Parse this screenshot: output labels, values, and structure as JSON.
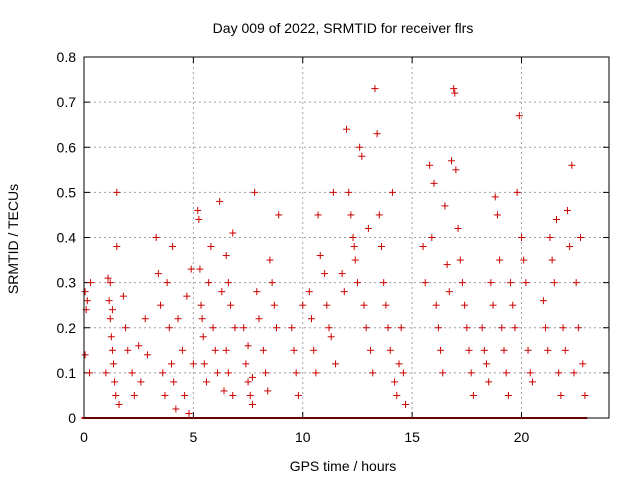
{
  "chart_data": {
    "type": "scatter",
    "title": "Day 009 of 2022, SRMTID for receiver flrs",
    "xlabel": "GPS time / hours",
    "ylabel": "SRMTID / TECUs",
    "xlim": [
      0,
      24
    ],
    "ylim": [
      0,
      0.8
    ],
    "xticks": [
      0,
      5,
      10,
      15,
      20
    ],
    "xtick_labels": [
      "0",
      "5",
      "10",
      "15",
      "20"
    ],
    "yticks": [
      0,
      0.1,
      0.2,
      0.3,
      0.4,
      0.5,
      0.6,
      0.7,
      0.8
    ],
    "ytick_labels": [
      "0",
      "0.1",
      "0.2",
      "0.3",
      "0.4",
      "0.5",
      "0.6",
      "0.7",
      "0.8"
    ],
    "grid": true,
    "marker": "+",
    "color": "#cc0000",
    "series": [
      {
        "name": "flrs",
        "points": [
          [
            0.05,
            0.28
          ],
          [
            0.05,
            0.14
          ],
          [
            0.1,
            0.24
          ],
          [
            0.15,
            0.26
          ],
          [
            0.3,
            0.3
          ],
          [
            0.25,
            0.1
          ],
          [
            1.1,
            0.31
          ],
          [
            1.15,
            0.26
          ],
          [
            1.2,
            0.22
          ],
          [
            1.25,
            0.18
          ],
          [
            1.3,
            0.15
          ],
          [
            1.35,
            0.12
          ],
          [
            1.4,
            0.08
          ],
          [
            1.45,
            0.05
          ],
          [
            1.5,
            0.5
          ],
          [
            1.5,
            0.38
          ],
          [
            1.2,
            0.3
          ],
          [
            1.3,
            0.24
          ],
          [
            1.6,
            0.03
          ],
          [
            1.0,
            0.1
          ],
          [
            1.8,
            0.27
          ],
          [
            1.9,
            0.2
          ],
          [
            2.0,
            0.15
          ],
          [
            2.2,
            0.1
          ],
          [
            2.3,
            0.05
          ],
          [
            2.5,
            0.16
          ],
          [
            2.6,
            0.08
          ],
          [
            2.8,
            0.22
          ],
          [
            2.9,
            0.14
          ],
          [
            3.3,
            0.4
          ],
          [
            3.4,
            0.32
          ],
          [
            3.5,
            0.25
          ],
          [
            3.6,
            0.1
          ],
          [
            3.7,
            0.05
          ],
          [
            3.8,
            0.3
          ],
          [
            3.9,
            0.2
          ],
          [
            4.0,
            0.12
          ],
          [
            4.05,
            0.38
          ],
          [
            4.1,
            0.08
          ],
          [
            4.2,
            0.02
          ],
          [
            4.3,
            0.22
          ],
          [
            4.5,
            0.15
          ],
          [
            4.6,
            0.05
          ],
          [
            4.7,
            0.27
          ],
          [
            4.8,
            0.01
          ],
          [
            4.9,
            0.33
          ],
          [
            5.0,
            0.12
          ],
          [
            5.2,
            0.46
          ],
          [
            5.25,
            0.44
          ],
          [
            5.3,
            0.33
          ],
          [
            5.35,
            0.25
          ],
          [
            5.4,
            0.22
          ],
          [
            5.45,
            0.18
          ],
          [
            5.5,
            0.12
          ],
          [
            5.6,
            0.08
          ],
          [
            5.7,
            0.3
          ],
          [
            5.8,
            0.38
          ],
          [
            5.9,
            0.2
          ],
          [
            6.0,
            0.15
          ],
          [
            6.1,
            0.1
          ],
          [
            6.2,
            0.48
          ],
          [
            6.3,
            0.28
          ],
          [
            6.4,
            0.06
          ],
          [
            6.5,
            0.36
          ],
          [
            6.6,
            0.3
          ],
          [
            6.7,
            0.25
          ],
          [
            6.8,
            0.41
          ],
          [
            6.9,
            0.2
          ],
          [
            6.5,
            0.15
          ],
          [
            6.6,
            0.1
          ],
          [
            6.8,
            0.05
          ],
          [
            7.3,
            0.2
          ],
          [
            7.4,
            0.12
          ],
          [
            7.5,
            0.08
          ],
          [
            7.6,
            0.05
          ],
          [
            7.7,
            0.03
          ],
          [
            7.8,
            0.5
          ],
          [
            7.9,
            0.28
          ],
          [
            8.0,
            0.22
          ],
          [
            8.2,
            0.15
          ],
          [
            8.3,
            0.1
          ],
          [
            8.5,
            0.35
          ],
          [
            8.6,
            0.3
          ],
          [
            8.7,
            0.25
          ],
          [
            8.8,
            0.2
          ],
          [
            8.9,
            0.45
          ],
          [
            8.4,
            0.06
          ],
          [
            7.5,
            0.16
          ],
          [
            7.7,
            0.09
          ],
          [
            9.5,
            0.2
          ],
          [
            9.6,
            0.15
          ],
          [
            9.7,
            0.1
          ],
          [
            9.8,
            0.05
          ],
          [
            10.0,
            0.25
          ],
          [
            10.3,
            0.28
          ],
          [
            10.4,
            0.22
          ],
          [
            10.5,
            0.15
          ],
          [
            10.6,
            0.1
          ],
          [
            10.7,
            0.45
          ],
          [
            10.8,
            0.36
          ],
          [
            11.0,
            0.32
          ],
          [
            11.1,
            0.25
          ],
          [
            11.2,
            0.2
          ],
          [
            11.3,
            0.18
          ],
          [
            11.4,
            0.5
          ],
          [
            11.5,
            0.12
          ],
          [
            11.8,
            0.32
          ],
          [
            11.9,
            0.28
          ],
          [
            12.0,
            0.64
          ],
          [
            12.1,
            0.5
          ],
          [
            12.2,
            0.45
          ],
          [
            12.3,
            0.4
          ],
          [
            12.35,
            0.38
          ],
          [
            12.4,
            0.35
          ],
          [
            12.5,
            0.3
          ],
          [
            12.6,
            0.6
          ],
          [
            12.7,
            0.58
          ],
          [
            12.8,
            0.25
          ],
          [
            12.9,
            0.2
          ],
          [
            13.0,
            0.42
          ],
          [
            13.1,
            0.15
          ],
          [
            13.2,
            0.1
          ],
          [
            13.3,
            0.73
          ],
          [
            13.4,
            0.63
          ],
          [
            13.5,
            0.45
          ],
          [
            13.6,
            0.38
          ],
          [
            13.7,
            0.3
          ],
          [
            13.8,
            0.25
          ],
          [
            13.9,
            0.2
          ],
          [
            14.0,
            0.15
          ],
          [
            14.1,
            0.5
          ],
          [
            14.2,
            0.08
          ],
          [
            14.3,
            0.05
          ],
          [
            14.4,
            0.12
          ],
          [
            14.5,
            0.2
          ],
          [
            14.6,
            0.1
          ],
          [
            14.7,
            0.03
          ],
          [
            15.5,
            0.38
          ],
          [
            15.6,
            0.3
          ],
          [
            15.8,
            0.56
          ],
          [
            15.9,
            0.4
          ],
          [
            16.0,
            0.52
          ],
          [
            16.1,
            0.25
          ],
          [
            16.2,
            0.2
          ],
          [
            16.3,
            0.15
          ],
          [
            16.4,
            0.1
          ],
          [
            16.5,
            0.47
          ],
          [
            16.6,
            0.34
          ],
          [
            16.7,
            0.28
          ],
          [
            16.8,
            0.57
          ],
          [
            16.9,
            0.73
          ],
          [
            16.95,
            0.72
          ],
          [
            17.0,
            0.55
          ],
          [
            17.1,
            0.42
          ],
          [
            17.2,
            0.35
          ],
          [
            17.3,
            0.3
          ],
          [
            17.4,
            0.25
          ],
          [
            17.5,
            0.2
          ],
          [
            17.6,
            0.15
          ],
          [
            17.7,
            0.1
          ],
          [
            17.8,
            0.05
          ],
          [
            18.2,
            0.2
          ],
          [
            18.3,
            0.15
          ],
          [
            18.4,
            0.12
          ],
          [
            18.5,
            0.08
          ],
          [
            18.6,
            0.3
          ],
          [
            18.7,
            0.25
          ],
          [
            18.8,
            0.49
          ],
          [
            18.9,
            0.45
          ],
          [
            19.0,
            0.35
          ],
          [
            19.1,
            0.2
          ],
          [
            19.2,
            0.15
          ],
          [
            19.3,
            0.1
          ],
          [
            19.4,
            0.05
          ],
          [
            19.5,
            0.3
          ],
          [
            19.6,
            0.25
          ],
          [
            19.7,
            0.2
          ],
          [
            19.8,
            0.5
          ],
          [
            19.9,
            0.67
          ],
          [
            20.0,
            0.4
          ],
          [
            20.1,
            0.35
          ],
          [
            20.2,
            0.3
          ],
          [
            20.3,
            0.15
          ],
          [
            20.4,
            0.1
          ],
          [
            20.5,
            0.08
          ],
          [
            21.0,
            0.26
          ],
          [
            21.1,
            0.2
          ],
          [
            21.2,
            0.15
          ],
          [
            21.3,
            0.4
          ],
          [
            21.4,
            0.35
          ],
          [
            21.5,
            0.3
          ],
          [
            21.6,
            0.44
          ],
          [
            21.7,
            0.1
          ],
          [
            21.8,
            0.05
          ],
          [
            21.9,
            0.2
          ],
          [
            22.0,
            0.15
          ],
          [
            22.1,
            0.46
          ],
          [
            22.2,
            0.38
          ],
          [
            22.3,
            0.56
          ],
          [
            22.4,
            0.1
          ],
          [
            22.5,
            0.3
          ],
          [
            22.6,
            0.2
          ],
          [
            22.7,
            0.4
          ],
          [
            22.8,
            0.12
          ],
          [
            22.9,
            0.05
          ]
        ]
      }
    ]
  }
}
